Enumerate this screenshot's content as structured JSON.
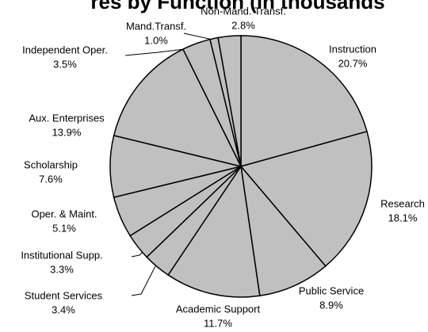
{
  "chart_data": {
    "type": "pie",
    "title": "res by Function (in thousands",
    "categories": [
      "Instruction",
      "Research",
      "Public Service",
      "Academic Support",
      "Student Services",
      "Institutional Supp.",
      "Oper. & Maint.",
      "Scholarship",
      "Aux. Enterprises",
      "Independent Oper.",
      "Mand.Transf.",
      "Non-Mand. Transf."
    ],
    "values": [
      20.7,
      18.1,
      8.9,
      11.7,
      3.4,
      3.3,
      5.1,
      7.6,
      13.9,
      3.5,
      1.0,
      2.8
    ],
    "value_labels": [
      "20.7%",
      "18.1%",
      "8.9%",
      "11.7%",
      "3.4%",
      "3.3%",
      "5.1%",
      "7.6%",
      "13.9%",
      "3.5%",
      "1.0%",
      "2.8%"
    ],
    "color": "#c0c0c0"
  }
}
